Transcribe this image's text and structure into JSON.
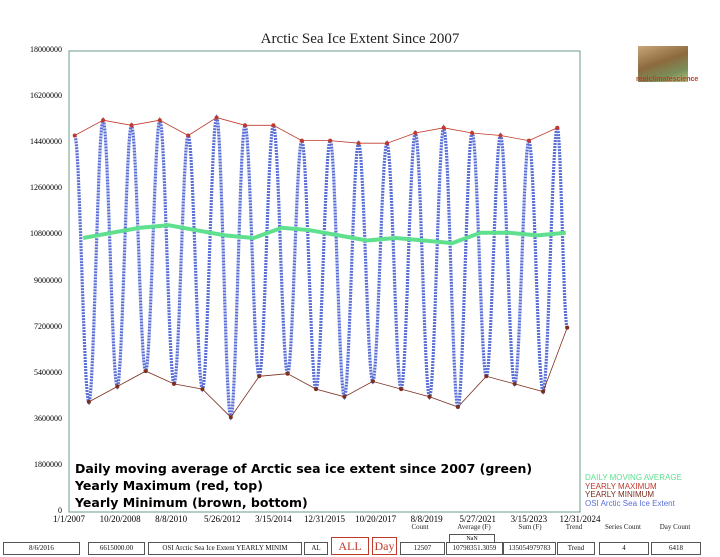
{
  "chart_data": {
    "type": "line",
    "title": "Arctic Sea Ice Extent Since 2007",
    "ylim": [
      0,
      18000000
    ],
    "y_ticks": [
      "18000000",
      "16200000",
      "14400000",
      "12600000",
      "10800000",
      "9000000",
      "7200000",
      "5400000",
      "3600000",
      "1800000",
      "0"
    ],
    "x_ticks": [
      "1/1/2007",
      "10/20/2008",
      "8/8/2010",
      "5/26/2012",
      "3/15/2014",
      "12/31/2015",
      "10/20/2017",
      "8/8/2019",
      "5/27/2021",
      "3/15/2023",
      "12/31/2024"
    ],
    "x_range": [
      "1/1/2007",
      "12/31/2024"
    ],
    "grid": false,
    "legend_placement": "bottom-right",
    "years": [
      2007,
      2008,
      2009,
      2010,
      2011,
      2012,
      2013,
      2014,
      2015,
      2016,
      2017,
      2018,
      2019,
      2020,
      2021,
      2022,
      2023,
      2024
    ],
    "series": [
      {
        "name": "YEARLY MAXIMUM",
        "color": "#c0392b",
        "values": [
          14700000,
          15300000,
          15100000,
          15300000,
          14700000,
          15400000,
          15100000,
          15100000,
          14500000,
          14500000,
          14400000,
          14400000,
          14800000,
          15000000,
          14800000,
          14700000,
          14500000,
          15000000
        ]
      },
      {
        "name": "YEARLY MINIMUM",
        "color": "#7b2f1f",
        "values": [
          4300000,
          4900000,
          5500000,
          5000000,
          4800000,
          3700000,
          5300000,
          5400000,
          4800000,
          4500000,
          5100000,
          4800000,
          4500000,
          4100000,
          5300000,
          5000000,
          4700000,
          7200000
        ]
      },
      {
        "name": "DAILY MOVING AVERAGE",
        "color": "#5ee08e",
        "values": [
          10700000,
          10900000,
          11100000,
          11200000,
          11000000,
          10800000,
          10700000,
          11100000,
          11000000,
          10800000,
          10600000,
          10700000,
          10600000,
          10500000,
          10900000,
          10900000,
          10800000,
          10900000
        ]
      },
      {
        "name": "OSI Arctic Sea Ice Extent",
        "color": "#5a6fd6"
      }
    ],
    "annotations": [
      "Daily moving average of Arctic sea ice extent since 2007 (green)",
      "Yearly Maximum (red, top)",
      "Yearly Minimum (brown, bottom)"
    ]
  },
  "logo_text": "realclimatescience",
  "stats": {
    "headers": {
      "count": "Count",
      "average": "Average (F)",
      "sum": "Sum (F)",
      "trend": "Trend",
      "series_count": "Series Count",
      "day_count": "Day Count"
    },
    "nan": "NaN",
    "date": "8/6/2016",
    "value": "6615000.00",
    "series_name": "OSI Arctic Sea Ice Extent YEARLY MINIM",
    "al": "AL",
    "all_button": "ALL",
    "day_button": "Day",
    "count": "12507",
    "average": "10798351.3059",
    "sum": "135054979783",
    "trend": "Trend",
    "series_count": "4",
    "day_count": "6418"
  }
}
